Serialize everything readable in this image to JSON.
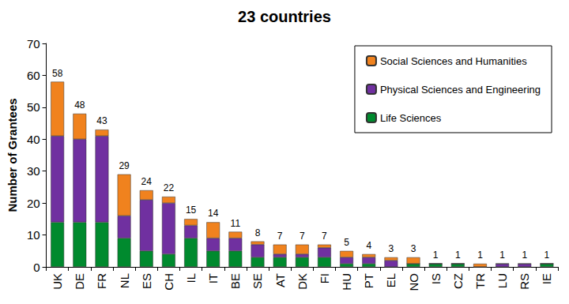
{
  "chart_data": {
    "type": "bar",
    "title": "23 countries",
    "y_label": "Number of Grantees",
    "categories": [
      "UK",
      "DE",
      "FR",
      "NL",
      "ES",
      "CH",
      "IL",
      "IT",
      "BE",
      "SE",
      "AT",
      "DK",
      "FI",
      "HU",
      "PT",
      "EL",
      "NO",
      "IS",
      "CZ",
      "TR",
      "LU",
      "RS",
      "IE"
    ],
    "series": [
      {
        "name": "Life Sciences",
        "color": "#008a2e",
        "values": [
          14,
          14,
          14,
          9,
          5,
          4,
          9,
          5,
          5,
          3,
          3,
          3,
          3,
          1,
          1,
          0,
          1,
          1,
          1,
          0,
          0,
          0,
          1
        ]
      },
      {
        "name": "Physical Sciences and Engineering",
        "color": "#7030a0",
        "values": [
          27,
          26,
          27,
          7,
          16,
          16,
          4,
          4,
          4,
          4,
          1,
          1,
          3,
          2,
          2,
          2,
          0,
          0,
          0,
          0,
          1,
          1,
          0
        ]
      },
      {
        "name": "Social Sciences and Humanities",
        "color": "#f0821e",
        "values": [
          17,
          8,
          2,
          13,
          3,
          2,
          2,
          5,
          2,
          1,
          3,
          3,
          1,
          2,
          1,
          1,
          2,
          0,
          0,
          1,
          0,
          0,
          0
        ]
      }
    ],
    "totals": [
      58,
      48,
      43,
      29,
      24,
      22,
      15,
      14,
      11,
      8,
      7,
      7,
      7,
      5,
      4,
      3,
      3,
      1,
      1,
      1,
      1,
      1,
      1
    ],
    "stacked": true,
    "ylim": [
      0,
      70
    ],
    "yticks": [
      0,
      10,
      20,
      30,
      40,
      50,
      60,
      70
    ],
    "grid": false,
    "legend": "top-right"
  }
}
